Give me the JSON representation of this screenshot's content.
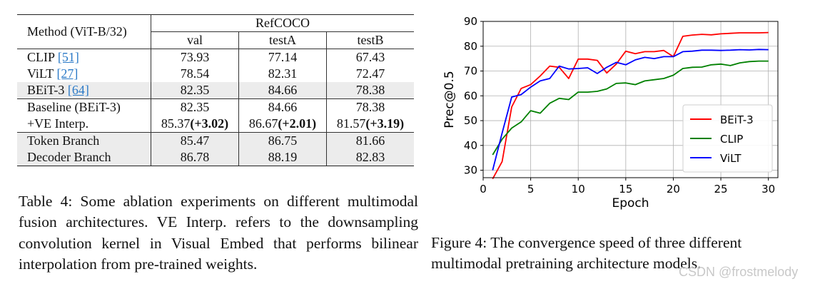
{
  "table": {
    "header": {
      "method": "Method (ViT-B/32)",
      "group": "RefCOCO",
      "columns": [
        "val",
        "testA",
        "testB"
      ]
    },
    "rows": [
      {
        "method": "CLIP",
        "cite": "[51]",
        "val": "73.93",
        "testA": "77.14",
        "testB": "67.43"
      },
      {
        "method": "ViLT",
        "cite": "[27]",
        "val": "78.54",
        "testA": "82.31",
        "testB": "72.47"
      },
      {
        "method": "BEiT-3",
        "cite": "[64]",
        "val": "82.35",
        "testA": "84.66",
        "testB": "78.38"
      },
      {
        "method": "Baseline (BEiT-3)",
        "val": "82.35",
        "testA": "84.66",
        "testB": "78.38"
      },
      {
        "method": "+VE Interp.",
        "val": "85.37",
        "val_delta": "(+3.02)",
        "testA": "86.67",
        "testA_delta": "(+2.01)",
        "testB": "81.57",
        "testB_delta": "(+3.19)"
      },
      {
        "method": "Token Branch",
        "val": "85.47",
        "testA": "86.75",
        "testB": "81.66"
      },
      {
        "method": "Decoder Branch",
        "val": "86.78",
        "testA": "88.19",
        "testB": "82.83"
      }
    ],
    "caption": "Table 4: Some ablation experiments on different multimodal fusion architectures. VE Interp. refers to the downsampling convolution kernel in Visual Embed that performs bilinear interpolation from pre-trained weights."
  },
  "figure": {
    "caption": "Figure 4: The convergence speed of three different multimodal pretraining architecture models."
  },
  "watermark": "CSDN @frostmelody",
  "chart_data": {
    "type": "line",
    "xlabel": "Epoch",
    "ylabel": "Prec@0.5",
    "xlim": [
      0,
      31
    ],
    "ylim": [
      27,
      90
    ],
    "xticks": [
      0,
      5,
      10,
      15,
      20,
      25,
      30
    ],
    "yticks": [
      30,
      40,
      50,
      60,
      70,
      80,
      90
    ],
    "legend_position": "lower-right",
    "x": [
      1,
      2,
      3,
      4,
      5,
      6,
      7,
      8,
      9,
      10,
      11,
      12,
      13,
      14,
      15,
      16,
      17,
      18,
      19,
      20,
      21,
      22,
      23,
      24,
      25,
      26,
      27,
      28,
      29,
      30
    ],
    "series": [
      {
        "name": "BEiT-3",
        "color": "#ff0000",
        "values": [
          26.5,
          33.5,
          55.5,
          63,
          64.5,
          68,
          72,
          71.5,
          67,
          74.8,
          74.8,
          74.3,
          69.2,
          72.8,
          78,
          77,
          77.8,
          77.8,
          78.3,
          75.8,
          84,
          84.5,
          84.8,
          84.6,
          85,
          85.2,
          85.4,
          85.4,
          85.4,
          85.5
        ]
      },
      {
        "name": "CLIP",
        "color": "#008000",
        "values": [
          36.2,
          42.5,
          47,
          49.5,
          54,
          53,
          57,
          59,
          58.5,
          61.5,
          61.5,
          61.8,
          62.8,
          65,
          65.2,
          64.5,
          66,
          66.5,
          67,
          68.3,
          71,
          71.5,
          71.6,
          72.5,
          72.8,
          72.2,
          73.3,
          73.8,
          74,
          74
        ]
      },
      {
        "name": "ViLT",
        "color": "#0000ff",
        "values": [
          30,
          45,
          59.5,
          60.5,
          63.5,
          66,
          67,
          72,
          70.8,
          71,
          71.3,
          69,
          71.5,
          73.5,
          72.5,
          74.5,
          75.5,
          75,
          75.8,
          75.8,
          77.8,
          78,
          78.4,
          78.4,
          78.3,
          78.4,
          78.6,
          78.5,
          78.7,
          78.6
        ]
      }
    ]
  }
}
